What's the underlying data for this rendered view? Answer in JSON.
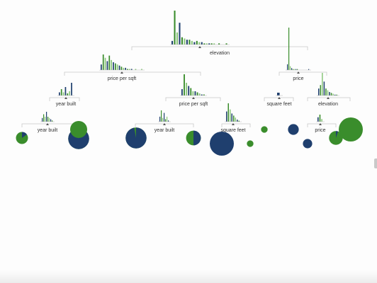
{
  "colors": {
    "class_a": "#1f3f6e",
    "class_b": "#3a8d2c",
    "class_b_light": "#8bc77c",
    "line": "#c8c8c8",
    "text": "#333333"
  },
  "nodes": [
    {
      "id": "root",
      "label": "elevation",
      "hist": [
        3,
        28,
        10,
        18,
        6,
        5,
        4,
        4,
        3,
        2,
        3,
        2,
        2,
        1,
        1,
        1,
        1,
        1,
        0,
        1,
        0,
        0,
        1
      ]
    },
    {
      "id": "n1",
      "label": "price per sqft",
      "hist": [
        5,
        14,
        11,
        8,
        13,
        9,
        7,
        6,
        5,
        4,
        3,
        2,
        2,
        1,
        1,
        1,
        0,
        1,
        0,
        0,
        1
      ]
    },
    {
      "id": "n2",
      "label": "price",
      "hist": [
        6,
        44,
        4,
        2,
        1,
        1,
        1,
        1,
        0,
        0,
        0,
        0,
        0,
        0,
        0,
        1
      ]
    },
    {
      "id": "n3",
      "label": "year built",
      "hist": [
        3,
        6,
        3,
        8,
        2,
        4,
        12
      ]
    },
    {
      "id": "n4",
      "label": "price per sqft",
      "hist": [
        6,
        20,
        12,
        9,
        7,
        4,
        4,
        3,
        2,
        1,
        1
      ]
    },
    {
      "id": "n5",
      "label": "square feet",
      "hist": [
        2
      ]
    },
    {
      "id": "n6",
      "label": "elevation",
      "hist": [
        8,
        12,
        26,
        16,
        8,
        6,
        4,
        3,
        2,
        1,
        1
      ]
    },
    {
      "id": "n7",
      "label": "year built",
      "hist": [
        3,
        6,
        4,
        8,
        4,
        3,
        2,
        1
      ]
    },
    {
      "id": "n8",
      "label": "year built",
      "hist": [
        4,
        9,
        3,
        7,
        2,
        4,
        1
      ]
    },
    {
      "id": "n9",
      "label": "square feet",
      "hist": [
        10,
        18,
        12,
        8,
        6,
        4,
        2,
        1
      ]
    },
    {
      "id": "n10",
      "label": "price",
      "hist": [
        5,
        8,
        3
      ]
    }
  ],
  "leaves": [
    {
      "id": "l1",
      "fraction_a": 0.15,
      "size": 1
    },
    {
      "id": "l2",
      "fraction_a": 0.95,
      "size": 3
    },
    {
      "id": "l3",
      "fraction_a": 0.0,
      "size": 2
    },
    {
      "id": "l4",
      "fraction_a": 0.97,
      "size": 3
    },
    {
      "id": "l5",
      "fraction_a": 0.5,
      "size": 1.5
    },
    {
      "id": "l6",
      "fraction_a": 1.0,
      "size": 4
    },
    {
      "id": "l7",
      "fraction_a": 0.0,
      "size": 0.3
    },
    {
      "id": "l8",
      "fraction_a": 0.0,
      "size": 0.3
    },
    {
      "id": "l9",
      "fraction_a": 1.0,
      "size": 0.8
    },
    {
      "id": "l10",
      "fraction_a": 1.0,
      "size": 0.6
    },
    {
      "id": "l11",
      "fraction_a": 0.05,
      "size": 1.3
    },
    {
      "id": "l12",
      "fraction_a": 0.0,
      "size": 4
    }
  ]
}
